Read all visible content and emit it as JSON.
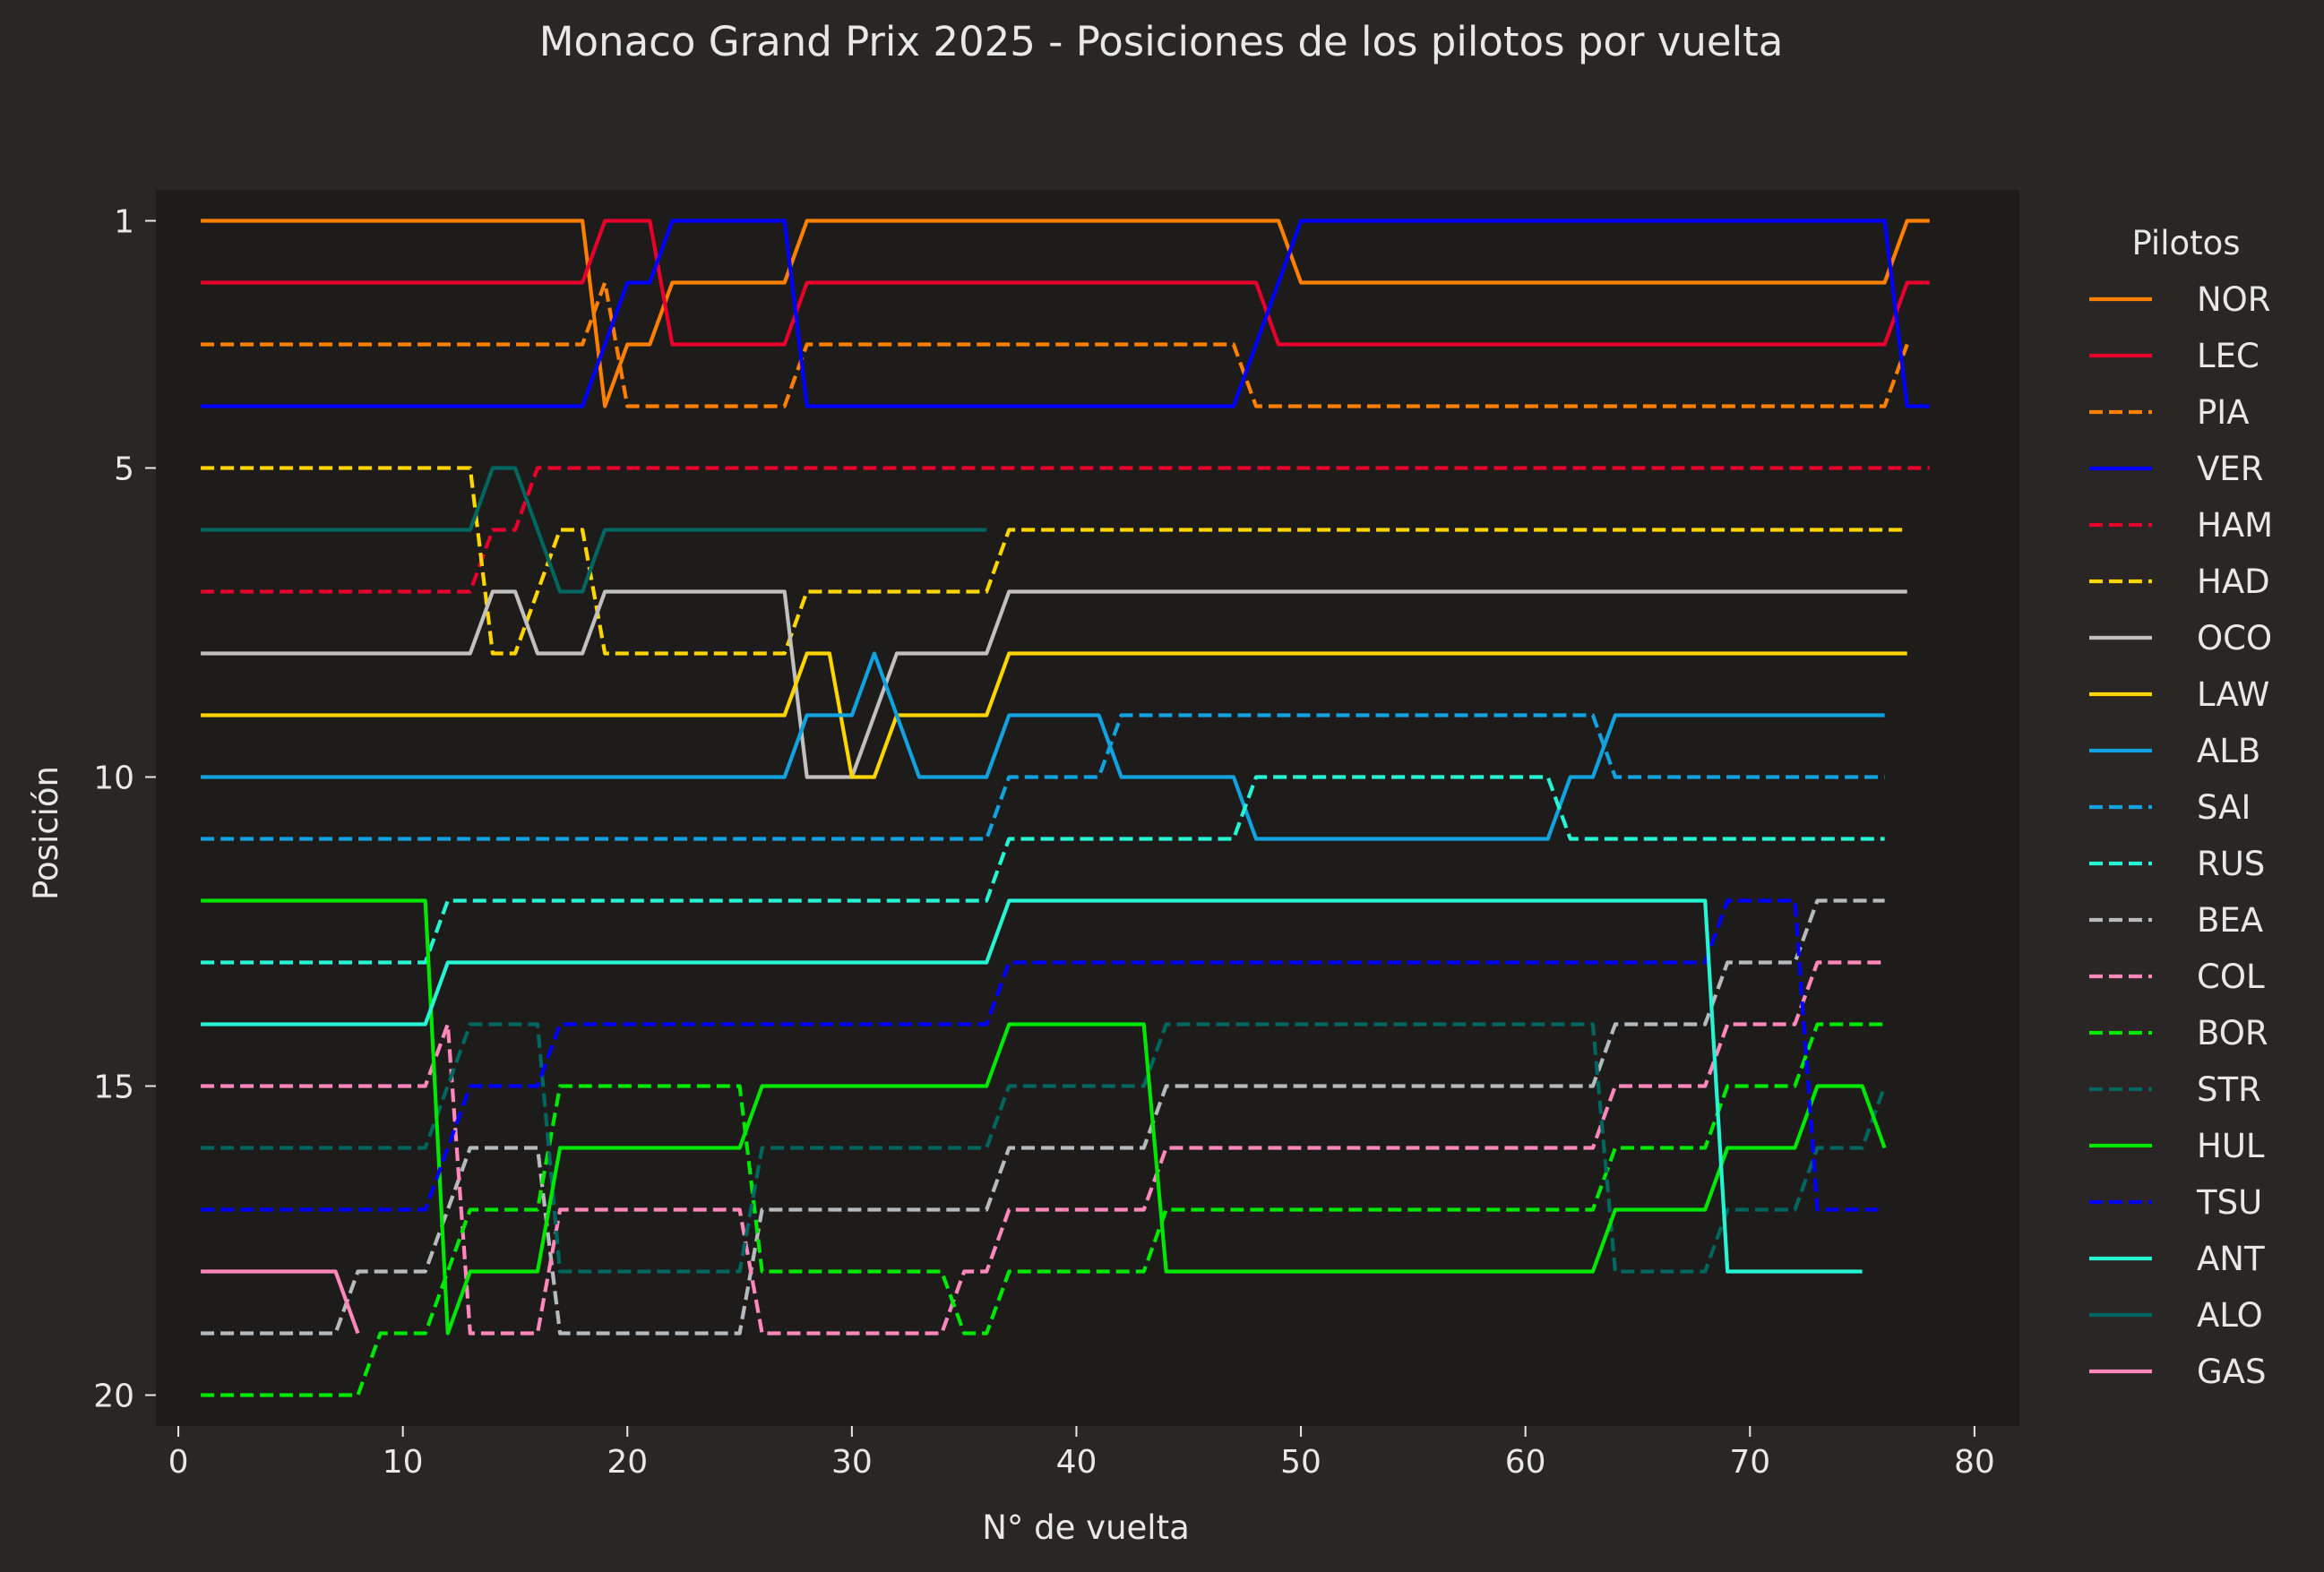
{
  "chart_data": {
    "type": "line",
    "title": "Monaco Grand Prix 2025 - Posiciones de los pilotos por vuelta",
    "xlabel": "N° de vuelta",
    "ylabel": "Posición",
    "xlim": [
      -1,
      82
    ],
    "ylim": [
      20.5,
      0.5
    ],
    "y_inverted": true,
    "x_ticks": [
      0,
      10,
      20,
      30,
      40,
      50,
      60,
      70,
      80
    ],
    "y_ticks": [
      1,
      5,
      10,
      15,
      20
    ],
    "grid": false,
    "legend_title": "Pilotos",
    "legend_position": "outside-right",
    "colors": {
      "figure_bg": "#2a2625",
      "axes_bg": "#1d1c1b",
      "text": "#e8e8e8"
    },
    "series": [
      {
        "name": "NOR",
        "color": "#ff8000",
        "dash": "solid",
        "points": [
          [
            1,
            1
          ],
          [
            18,
            1
          ],
          [
            19,
            4
          ],
          [
            20,
            3
          ],
          [
            21,
            3
          ],
          [
            22,
            2
          ],
          [
            27,
            2
          ],
          [
            28,
            1
          ],
          [
            49,
            1
          ],
          [
            50,
            2
          ],
          [
            76,
            2
          ],
          [
            77,
            1
          ],
          [
            78,
            1
          ]
        ]
      },
      {
        "name": "LEC",
        "color": "#e8002d",
        "dash": "solid",
        "points": [
          [
            1,
            2
          ],
          [
            18,
            2
          ],
          [
            19,
            1
          ],
          [
            21,
            1
          ],
          [
            22,
            3
          ],
          [
            27,
            3
          ],
          [
            28,
            2
          ],
          [
            48,
            2
          ],
          [
            49,
            3
          ],
          [
            76,
            3
          ],
          [
            77,
            2
          ],
          [
            78,
            2
          ]
        ]
      },
      {
        "name": "PIA",
        "color": "#ff8000",
        "dash": "dashed",
        "points": [
          [
            1,
            3
          ],
          [
            18,
            3
          ],
          [
            19,
            2
          ],
          [
            20,
            4
          ],
          [
            27,
            4
          ],
          [
            28,
            3
          ],
          [
            47,
            3
          ],
          [
            48,
            4
          ],
          [
            76,
            4
          ],
          [
            77,
            3
          ]
        ]
      },
      {
        "name": "VER",
        "color": "#0000ff",
        "dash": "solid",
        "points": [
          [
            1,
            4
          ],
          [
            18,
            4
          ],
          [
            20,
            2
          ],
          [
            21,
            2
          ],
          [
            22,
            1
          ],
          [
            27,
            1
          ],
          [
            28,
            4
          ],
          [
            47,
            4
          ],
          [
            50,
            1
          ],
          [
            76,
            1
          ],
          [
            77,
            4
          ],
          [
            78,
            4
          ]
        ]
      },
      {
        "name": "HAM",
        "color": "#e8002d",
        "dash": "dashed",
        "points": [
          [
            1,
            7
          ],
          [
            13,
            7
          ],
          [
            14,
            6
          ],
          [
            15,
            6
          ],
          [
            16,
            5
          ],
          [
            78,
            5
          ]
        ]
      },
      {
        "name": "HAD",
        "color": "#ffd500",
        "dash": "dashed",
        "points": [
          [
            1,
            5
          ],
          [
            13,
            5
          ],
          [
            14,
            8
          ],
          [
            15,
            8
          ],
          [
            16,
            7
          ],
          [
            17,
            6
          ],
          [
            18,
            6
          ],
          [
            19,
            8
          ],
          [
            27,
            8
          ],
          [
            28,
            7
          ],
          [
            36,
            7
          ],
          [
            37,
            6
          ],
          [
            77,
            6
          ]
        ]
      },
      {
        "name": "OCO",
        "color": "#c0c0c0",
        "dash": "solid",
        "points": [
          [
            1,
            8
          ],
          [
            13,
            8
          ],
          [
            14,
            7
          ],
          [
            15,
            7
          ],
          [
            16,
            8
          ],
          [
            18,
            8
          ],
          [
            19,
            7
          ],
          [
            27,
            7
          ],
          [
            28,
            10
          ],
          [
            30,
            10
          ],
          [
            32,
            8
          ],
          [
            36,
            8
          ],
          [
            37,
            7
          ],
          [
            77,
            7
          ]
        ]
      },
      {
        "name": "LAW",
        "color": "#ffd500",
        "dash": "solid",
        "points": [
          [
            1,
            9
          ],
          [
            27,
            9
          ],
          [
            28,
            8
          ],
          [
            29,
            8
          ],
          [
            30,
            10
          ],
          [
            31,
            10
          ],
          [
            32,
            9
          ],
          [
            36,
            9
          ],
          [
            37,
            8
          ],
          [
            77,
            8
          ]
        ]
      },
      {
        "name": "ALB",
        "color": "#12a2e0",
        "dash": "solid",
        "points": [
          [
            1,
            10
          ],
          [
            27,
            10
          ],
          [
            28,
            9
          ],
          [
            30,
            9
          ],
          [
            31,
            8
          ],
          [
            33,
            10
          ],
          [
            36,
            10
          ],
          [
            37,
            9
          ],
          [
            41,
            9
          ],
          [
            42,
            10
          ],
          [
            47,
            10
          ],
          [
            48,
            11
          ],
          [
            61,
            11
          ],
          [
            62,
            10
          ],
          [
            63,
            10
          ],
          [
            64,
            9
          ],
          [
            76,
            9
          ]
        ]
      },
      {
        "name": "SAI",
        "color": "#12a2e0",
        "dash": "dashed",
        "points": [
          [
            1,
            11
          ],
          [
            36,
            11
          ],
          [
            37,
            10
          ],
          [
            41,
            10
          ],
          [
            42,
            9
          ],
          [
            63,
            9
          ],
          [
            64,
            10
          ],
          [
            76,
            10
          ]
        ]
      },
      {
        "name": "RUS",
        "color": "#27f4d2",
        "dash": "dashed",
        "points": [
          [
            1,
            13
          ],
          [
            11,
            13
          ],
          [
            12,
            12
          ],
          [
            36,
            12
          ],
          [
            37,
            11
          ],
          [
            47,
            11
          ],
          [
            48,
            10
          ],
          [
            61,
            10
          ],
          [
            62,
            11
          ],
          [
            76,
            11
          ]
        ]
      },
      {
        "name": "BEA",
        "color": "#b6babd",
        "dash": "dashed",
        "points": [
          [
            1,
            19
          ],
          [
            7,
            19
          ],
          [
            8,
            18
          ],
          [
            11,
            18
          ],
          [
            12,
            17
          ],
          [
            13,
            16
          ],
          [
            16,
            16
          ],
          [
            17,
            19
          ],
          [
            25,
            19
          ],
          [
            26,
            17
          ],
          [
            36,
            17
          ],
          [
            37,
            16
          ],
          [
            43,
            16
          ],
          [
            44,
            15
          ],
          [
            63,
            15
          ],
          [
            64,
            14
          ],
          [
            68,
            14
          ],
          [
            69,
            13
          ],
          [
            72,
            13
          ],
          [
            73,
            12
          ],
          [
            76,
            12
          ]
        ]
      },
      {
        "name": "COL",
        "color": "#ff87bc",
        "dash": "dashed",
        "points": [
          [
            1,
            15
          ],
          [
            11,
            15
          ],
          [
            12,
            14
          ],
          [
            13,
            19
          ],
          [
            16,
            19
          ],
          [
            17,
            17
          ],
          [
            25,
            17
          ],
          [
            26,
            19
          ],
          [
            34,
            19
          ],
          [
            35,
            18
          ],
          [
            36,
            18
          ],
          [
            37,
            17
          ],
          [
            43,
            17
          ],
          [
            44,
            16
          ],
          [
            63,
            16
          ],
          [
            64,
            15
          ],
          [
            68,
            15
          ],
          [
            69,
            14
          ],
          [
            72,
            14
          ],
          [
            73,
            13
          ],
          [
            76,
            13
          ]
        ]
      },
      {
        "name": "BOR",
        "color": "#00e701",
        "dash": "dashed",
        "points": [
          [
            1,
            20
          ],
          [
            8,
            20
          ],
          [
            9,
            19
          ],
          [
            11,
            19
          ],
          [
            12,
            18
          ],
          [
            13,
            17
          ],
          [
            16,
            17
          ],
          [
            17,
            15
          ],
          [
            25,
            15
          ],
          [
            26,
            18
          ],
          [
            34,
            18
          ],
          [
            35,
            19
          ],
          [
            36,
            19
          ],
          [
            37,
            18
          ],
          [
            43,
            18
          ],
          [
            44,
            17
          ],
          [
            63,
            17
          ],
          [
            64,
            16
          ],
          [
            68,
            16
          ],
          [
            69,
            15
          ],
          [
            72,
            15
          ],
          [
            73,
            14
          ],
          [
            76,
            14
          ]
        ]
      },
      {
        "name": "STR",
        "color": "#00665f",
        "dash": "dashed",
        "points": [
          [
            1,
            16
          ],
          [
            11,
            16
          ],
          [
            13,
            14
          ],
          [
            16,
            14
          ],
          [
            17,
            18
          ],
          [
            25,
            18
          ],
          [
            26,
            16
          ],
          [
            36,
            16
          ],
          [
            37,
            15
          ],
          [
            43,
            15
          ],
          [
            44,
            14
          ],
          [
            63,
            14
          ],
          [
            64,
            18
          ],
          [
            68,
            18
          ],
          [
            69,
            17
          ],
          [
            72,
            17
          ],
          [
            73,
            16
          ],
          [
            75,
            16
          ],
          [
            76,
            15
          ]
        ]
      },
      {
        "name": "HUL",
        "color": "#00e701",
        "dash": "solid",
        "points": [
          [
            1,
            12
          ],
          [
            11,
            12
          ],
          [
            12,
            19
          ],
          [
            13,
            18
          ],
          [
            16,
            18
          ],
          [
            17,
            16
          ],
          [
            25,
            16
          ],
          [
            26,
            15
          ],
          [
            36,
            15
          ],
          [
            37,
            14
          ],
          [
            43,
            14
          ],
          [
            44,
            18
          ],
          [
            63,
            18
          ],
          [
            64,
            17
          ],
          [
            68,
            17
          ],
          [
            69,
            16
          ],
          [
            72,
            16
          ],
          [
            73,
            15
          ],
          [
            75,
            15
          ],
          [
            76,
            16
          ]
        ]
      },
      {
        "name": "TSU",
        "color": "#0000ff",
        "dash": "dashed",
        "points": [
          [
            1,
            17
          ],
          [
            11,
            17
          ],
          [
            12,
            16
          ],
          [
            13,
            15
          ],
          [
            16,
            15
          ],
          [
            17,
            14
          ],
          [
            36,
            14
          ],
          [
            37,
            13
          ],
          [
            68,
            13
          ],
          [
            69,
            12
          ],
          [
            72,
            12
          ],
          [
            73,
            17
          ],
          [
            76,
            17
          ]
        ]
      },
      {
        "name": "ANT",
        "color": "#27f4d2",
        "dash": "solid",
        "points": [
          [
            1,
            14
          ],
          [
            11,
            14
          ],
          [
            12,
            13
          ],
          [
            36,
            13
          ],
          [
            37,
            12
          ],
          [
            68,
            12
          ],
          [
            69,
            18
          ],
          [
            75,
            18
          ]
        ]
      },
      {
        "name": "ALO",
        "color": "#00665f",
        "dash": "solid",
        "points": [
          [
            1,
            6
          ],
          [
            13,
            6
          ],
          [
            14,
            5
          ],
          [
            15,
            5
          ],
          [
            17,
            7
          ],
          [
            18,
            7
          ],
          [
            19,
            6
          ],
          [
            36,
            6
          ]
        ]
      },
      {
        "name": "GAS",
        "color": "#ff87bc",
        "dash": "solid",
        "points": [
          [
            1,
            18
          ],
          [
            7,
            18
          ],
          [
            8,
            19
          ]
        ]
      }
    ]
  }
}
